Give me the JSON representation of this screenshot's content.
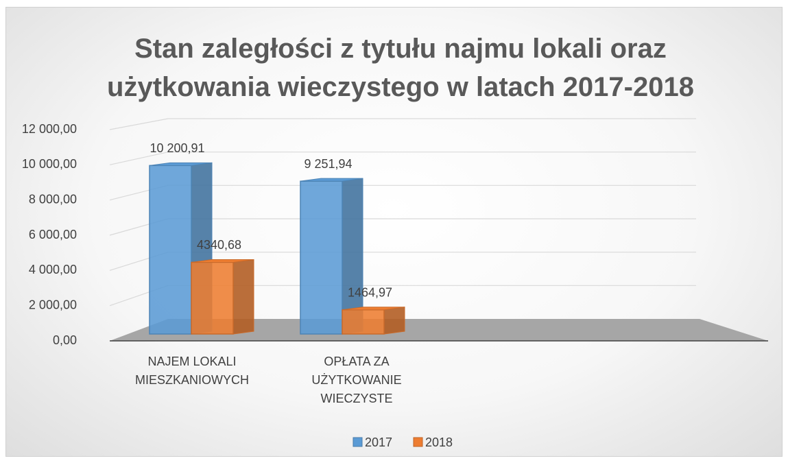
{
  "chart_data": {
    "type": "bar",
    "title": "Stan zaległości z tytułu najmu lokali oraz użytkowania wieczystego w latach 2017-2018",
    "categories": [
      "NAJEM LOKALI MIESZKANIOWYCH",
      "OPŁATA ZA UŻYTKOWANIE WIECZYSTE"
    ],
    "series": [
      {
        "name": "2017",
        "color": "#5b9bd5",
        "values": [
          10200.91,
          9251.94
        ],
        "value_labels": [
          "10 200,91",
          "9 251,94"
        ]
      },
      {
        "name": "2018",
        "color": "#ed7d31",
        "values": [
          4340.68,
          1464.97
        ],
        "value_labels": [
          "4340,68",
          "1464,97"
        ]
      }
    ],
    "ylim": [
      0,
      12000
    ],
    "yticks": [
      {
        "value": 0,
        "label": "0,00"
      },
      {
        "value": 2000,
        "label": "2 000,00"
      },
      {
        "value": 4000,
        "label": "4 000,00"
      },
      {
        "value": 6000,
        "label": "6 000,00"
      },
      {
        "value": 8000,
        "label": "8 000,00"
      },
      {
        "value": 10000,
        "label": "10 000,00"
      },
      {
        "value": 12000,
        "label": "12 000,00"
      }
    ],
    "grid": true,
    "legend": "bottom"
  }
}
